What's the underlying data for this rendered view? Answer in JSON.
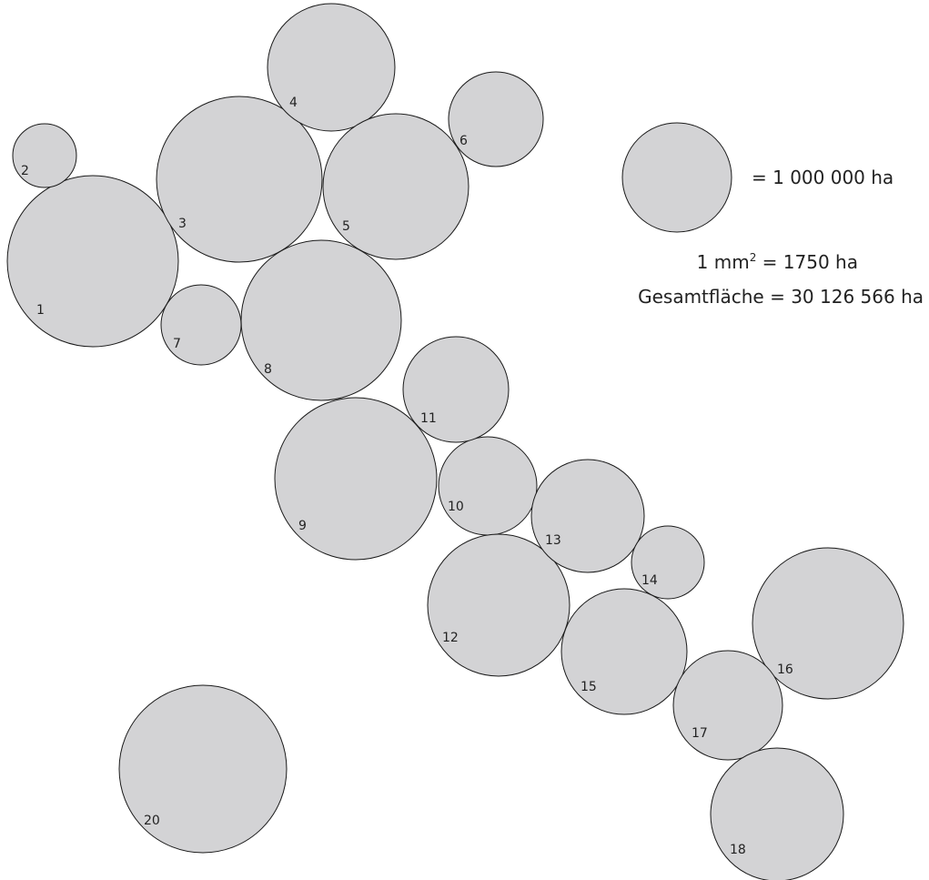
{
  "regions": [
    {
      "id": "1"
    },
    {
      "id": "2"
    },
    {
      "id": "3"
    },
    {
      "id": "4"
    },
    {
      "id": "5"
    },
    {
      "id": "6"
    },
    {
      "id": "7"
    },
    {
      "id": "8"
    },
    {
      "id": "9"
    },
    {
      "id": "10"
    },
    {
      "id": "11"
    },
    {
      "id": "12"
    },
    {
      "id": "13"
    },
    {
      "id": "14"
    },
    {
      "id": "15"
    },
    {
      "id": "16"
    },
    {
      "id": "17"
    },
    {
      "id": "18"
    },
    {
      "id": "20"
    }
  ],
  "legend": {
    "reference_label": "= 1 000 000 ha",
    "scale_prefix": "1 mm",
    "scale_exponent": "2",
    "scale_suffix": " = 1750 ha",
    "total": "Gesamtfläche = 30 126 566 ha"
  },
  "colors": {
    "circle_fill": "#d3d3d5",
    "circle_stroke": "#1a1a1a",
    "text": "#222222"
  }
}
